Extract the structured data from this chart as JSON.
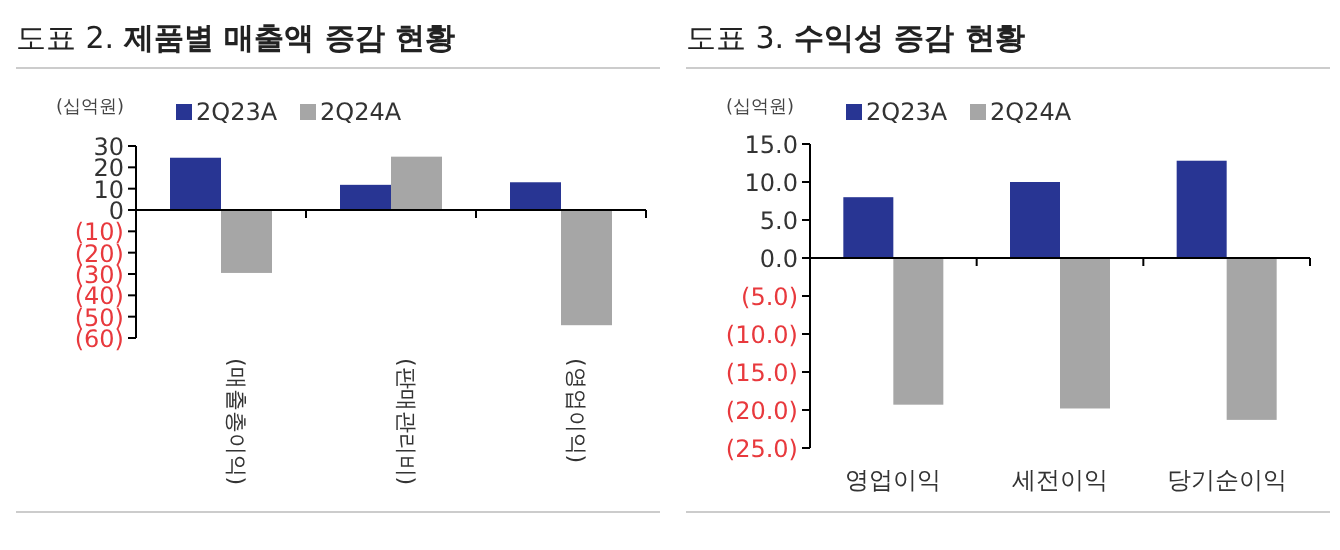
{
  "chart_data": [
    {
      "type": "bar",
      "title": "도표 2. **제품별 매출액 증감 현황**",
      "ylabel": "(십억원)",
      "categories": [
        "(매출총이익)",
        "(판매관리비)",
        "(영업이익)"
      ],
      "series": [
        {
          "name": "2Q23A",
          "color": "#283593",
          "values": [
            24.5,
            11.8,
            13
          ]
        },
        {
          "name": "2Q24A",
          "color": "#a6a6a6",
          "values": [
            -29.5,
            25,
            -54
          ]
        }
      ],
      "ylim": [
        -60,
        30
      ],
      "yticks": [
        30,
        20,
        10,
        0,
        {
          "value": -10,
          "label": "(10)"
        },
        {
          "value": -20,
          "label": "(20)"
        },
        {
          "value": -30,
          "label": "(30)"
        },
        {
          "value": -40,
          "label": "(40)"
        },
        {
          "value": -50,
          "label": "(50)"
        },
        {
          "value": -60,
          "label": "(60)"
        }
      ],
      "legend": "top"
    },
    {
      "type": "bar",
      "title": "도표 3. **수익성 증감 현황**",
      "ylabel": "(십억원)",
      "categories": [
        "영업이익",
        "세전이익",
        "당기순이익"
      ],
      "series": [
        {
          "name": "2Q23A",
          "color": "#283593",
          "values": [
            8.0,
            10.0,
            12.8
          ]
        },
        {
          "name": "2Q24A",
          "color": "#a6a6a6",
          "values": [
            -19.3,
            -19.8,
            -21.3
          ]
        }
      ],
      "ylim": [
        -25,
        15
      ],
      "yticks": [
        {
          "value": 15,
          "label": "15.0"
        },
        {
          "value": 10,
          "label": "10.0"
        },
        {
          "value": 5,
          "label": "5.0"
        },
        {
          "value": 0,
          "label": "0.0"
        },
        {
          "value": -5,
          "label": "(5.0)"
        },
        {
          "value": -10,
          "label": "(10.0)"
        },
        {
          "value": -15,
          "label": "(15.0)"
        },
        {
          "value": -20,
          "label": "(20.0)"
        },
        {
          "value": -25,
          "label": "(25.0)"
        }
      ],
      "legend": "top"
    }
  ]
}
